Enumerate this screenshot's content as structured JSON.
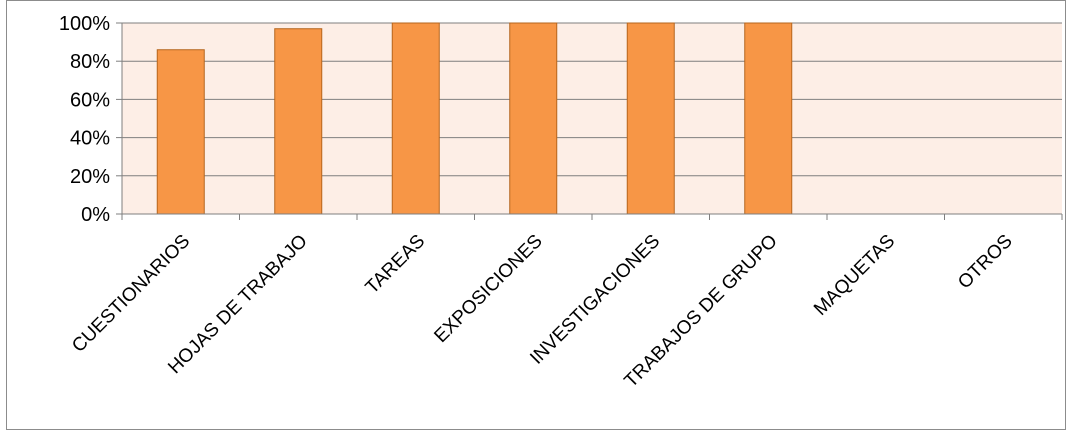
{
  "chart_data": {
    "type": "bar",
    "title": "",
    "xlabel": "",
    "ylabel": "",
    "categories": [
      "CUESTIONARIOS",
      "HOJAS DE TRABAJO",
      "TAREAS",
      "EXPOSICIONES",
      "INVESTIGACIONES",
      "TRABAJOS DE GRUPO",
      "MAQUETAS",
      "OTROS"
    ],
    "values": [
      86,
      97,
      100,
      100,
      100,
      100,
      0,
      0
    ],
    "y_tick_labels": [
      "0%",
      "20%",
      "40%",
      "60%",
      "80%",
      "100%"
    ],
    "y_ticks": [
      0,
      20,
      40,
      60,
      80,
      100
    ],
    "ylim": [
      0,
      100
    ],
    "grid": true,
    "legend": "none",
    "colors": {
      "bar_fill": "#F79646",
      "bar_stroke": "#B5651D",
      "plot_background": "#FDEEE6",
      "gridline": "#7f7f7f",
      "axis": "#7f7f7f"
    }
  }
}
